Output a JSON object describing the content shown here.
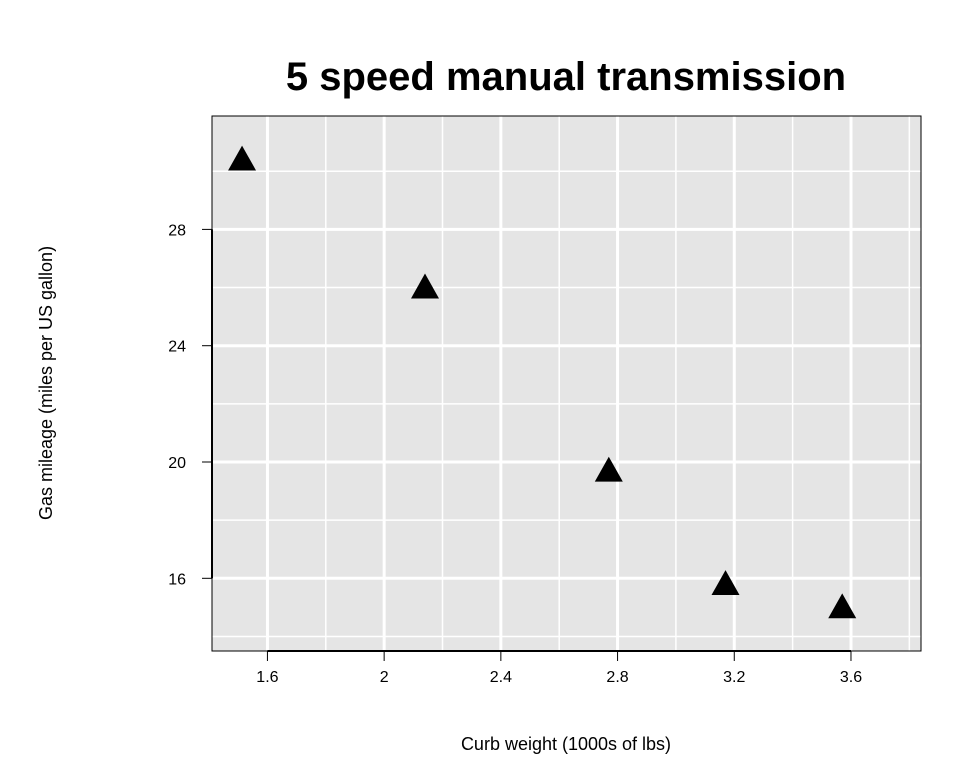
{
  "chart_data": {
    "type": "scatter",
    "title": "5 speed manual transmission",
    "xlabel": "Curb weight (1000s of lbs)",
    "ylabel": "Gas mileage (miles per US gallon)",
    "xlim": [
      1.41,
      3.84
    ],
    "ylim": [
      13.5,
      31.9
    ],
    "x_ticks": [
      1.6,
      2.0,
      2.4,
      2.8,
      3.2,
      3.6
    ],
    "x_tick_labels": [
      "1.6",
      "2",
      "2.4",
      "2.8",
      "3.2",
      "3.6"
    ],
    "y_ticks": [
      16,
      20,
      24,
      28
    ],
    "y_tick_labels": [
      "16",
      "20",
      "24",
      "28"
    ],
    "grid": true,
    "marker": "filled-triangle",
    "points": [
      {
        "x": 1.513,
        "y": 30.4
      },
      {
        "x": 2.14,
        "y": 26.0
      },
      {
        "x": 2.77,
        "y": 19.7
      },
      {
        "x": 3.17,
        "y": 15.8
      },
      {
        "x": 3.57,
        "y": 15.0
      }
    ],
    "colors": {
      "panel": "#e5e5e5",
      "grid": "#ffffff",
      "marker": "#000000"
    }
  }
}
